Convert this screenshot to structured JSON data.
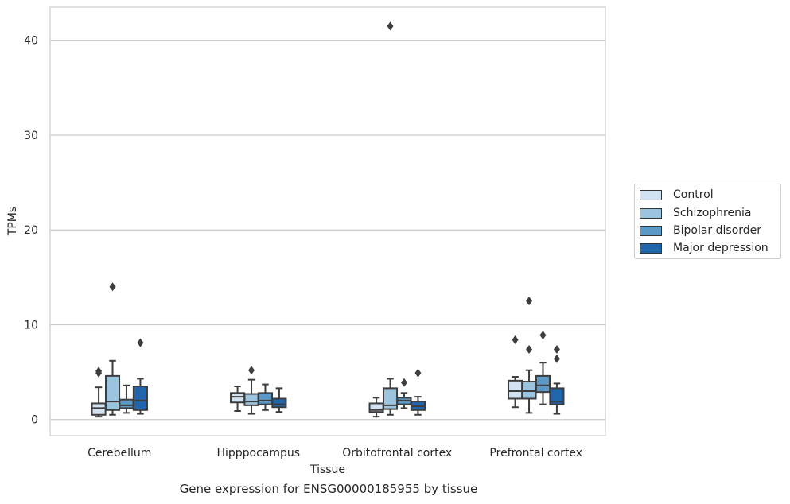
{
  "chart_data": {
    "type": "box",
    "title": "",
    "caption": "Gene expression for ENSG00000185955 by tissue",
    "xlabel": "Tissue",
    "ylabel": "TPMs",
    "ylim": [
      -1.7,
      43.5
    ],
    "yticks": [
      0,
      10,
      20,
      30,
      40
    ],
    "grid": "horizontal",
    "legend_position": "right",
    "categories": [
      "Cerebellum",
      "Hipppocampus",
      "Orbitofrontal cortex",
      "Prefrontal cortex"
    ],
    "series": [
      {
        "name": "Control",
        "color": "#d3e2f0",
        "boxes": [
          {
            "whislo": 0.3,
            "q1": 0.5,
            "med": 1.2,
            "q3": 1.7,
            "whishi": 3.4,
            "fliers": [
              5.1,
              4.9
            ]
          },
          {
            "whislo": 0.9,
            "q1": 1.8,
            "med": 2.4,
            "q3": 2.8,
            "whishi": 3.5,
            "fliers": []
          },
          {
            "whislo": 0.3,
            "q1": 0.8,
            "med": 1.0,
            "q3": 1.7,
            "whishi": 2.3,
            "fliers": []
          },
          {
            "whislo": 1.3,
            "q1": 2.2,
            "med": 3.0,
            "q3": 4.1,
            "whishi": 4.5,
            "fliers": [
              8.4
            ]
          }
        ]
      },
      {
        "name": "Schizophrenia",
        "color": "#9dc4de",
        "boxes": [
          {
            "whislo": 0.5,
            "q1": 1.0,
            "med": 1.9,
            "q3": 4.6,
            "whishi": 6.2,
            "fliers": [
              14.0
            ]
          },
          {
            "whislo": 0.6,
            "q1": 1.5,
            "med": 1.9,
            "q3": 2.7,
            "whishi": 4.2,
            "fliers": [
              5.2
            ]
          },
          {
            "whislo": 0.5,
            "q1": 1.1,
            "med": 1.5,
            "q3": 3.3,
            "whishi": 4.3,
            "fliers": [
              41.5
            ]
          },
          {
            "whislo": 0.7,
            "q1": 2.2,
            "med": 3.0,
            "q3": 4.0,
            "whishi": 5.2,
            "fliers": [
              12.5,
              7.4
            ]
          }
        ]
      },
      {
        "name": "Bipolar disorder",
        "color": "#5b9ac8",
        "boxes": [
          {
            "whislo": 0.7,
            "q1": 1.2,
            "med": 1.5,
            "q3": 2.1,
            "whishi": 3.6,
            "fliers": []
          },
          {
            "whislo": 1.0,
            "q1": 1.6,
            "med": 2.0,
            "q3": 2.8,
            "whishi": 3.7,
            "fliers": []
          },
          {
            "whislo": 1.2,
            "q1": 1.6,
            "med": 2.0,
            "q3": 2.3,
            "whishi": 2.8,
            "fliers": [
              3.9
            ]
          },
          {
            "whislo": 1.6,
            "q1": 2.9,
            "med": 3.6,
            "q3": 4.6,
            "whishi": 6.0,
            "fliers": [
              8.9
            ]
          }
        ]
      },
      {
        "name": "Major depression",
        "color": "#2166ac",
        "boxes": [
          {
            "whislo": 0.6,
            "q1": 1.0,
            "med": 2.0,
            "q3": 3.5,
            "whishi": 4.3,
            "fliers": [
              8.1
            ]
          },
          {
            "whislo": 0.8,
            "q1": 1.3,
            "med": 1.6,
            "q3": 2.2,
            "whishi": 3.3,
            "fliers": []
          },
          {
            "whislo": 0.5,
            "q1": 1.0,
            "med": 1.4,
            "q3": 1.9,
            "whishi": 2.4,
            "fliers": [
              4.9
            ]
          },
          {
            "whislo": 0.6,
            "q1": 1.6,
            "med": 1.9,
            "q3": 3.3,
            "whishi": 3.8,
            "fliers": [
              7.4,
              6.4
            ]
          }
        ]
      }
    ]
  }
}
